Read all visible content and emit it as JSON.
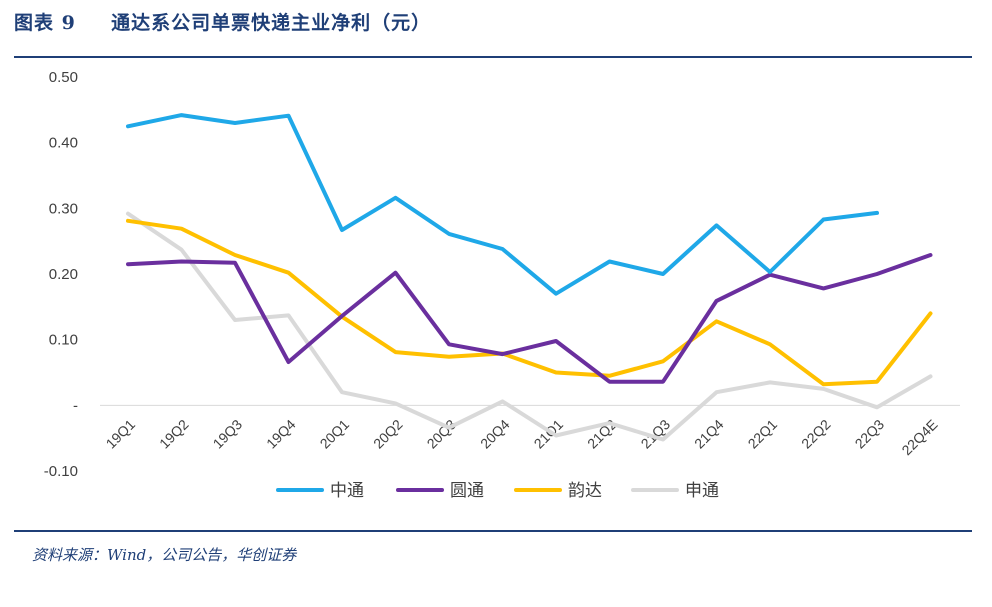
{
  "header": {
    "figure_label": "图表 9",
    "title": "通达系公司单票快递主业净利（元）"
  },
  "footer": {
    "source": "资料来源：Wind，公司公告，华创证券"
  },
  "chart_data": {
    "type": "line",
    "title": "通达系公司单票快递主业净利（元）",
    "xlabel": "",
    "ylabel": "",
    "ylim": [
      -0.1,
      0.5
    ],
    "y_ticks": [
      {
        "value": 0.5,
        "label": "0.50"
      },
      {
        "value": 0.4,
        "label": "0.40"
      },
      {
        "value": 0.3,
        "label": "0.30"
      },
      {
        "value": 0.2,
        "label": "0.20"
      },
      {
        "value": 0.1,
        "label": "0.10"
      },
      {
        "value": 0.0,
        "label": "-"
      },
      {
        "value": -0.1,
        "label": "-0.10"
      }
    ],
    "grid": false,
    "legend_position": "bottom",
    "categories": [
      "19Q1",
      "19Q2",
      "19Q3",
      "19Q4",
      "20Q1",
      "20Q2",
      "20Q3",
      "20Q4",
      "21Q1",
      "21Q2",
      "21Q3",
      "21Q4",
      "22Q1",
      "22Q2",
      "22Q3",
      "22Q4E"
    ],
    "series": [
      {
        "name": "中通",
        "color": "#1fa8e8",
        "values": [
          0.425,
          0.442,
          0.43,
          0.441,
          0.267,
          0.316,
          0.261,
          0.238,
          0.17,
          0.219,
          0.2,
          0.274,
          0.203,
          0.283,
          0.293,
          null
        ]
      },
      {
        "name": "圆通",
        "color": "#6a2f9e",
        "values": [
          0.215,
          0.219,
          0.217,
          0.066,
          0.136,
          0.202,
          0.093,
          0.078,
          0.098,
          0.036,
          0.036,
          0.159,
          0.199,
          0.178,
          0.2,
          0.229
        ]
      },
      {
        "name": "韵达",
        "color": "#ffc000",
        "values": [
          0.281,
          0.269,
          0.229,
          0.202,
          0.135,
          0.081,
          0.074,
          0.079,
          0.05,
          0.045,
          0.067,
          0.128,
          0.093,
          0.032,
          0.036,
          0.14
        ]
      },
      {
        "name": "申通",
        "color": "#d9d9d9",
        "values": [
          0.292,
          0.237,
          0.13,
          0.137,
          0.02,
          0.003,
          -0.034,
          0.006,
          -0.046,
          -0.027,
          -0.052,
          0.02,
          0.035,
          0.025,
          -0.003,
          0.044
        ]
      }
    ]
  }
}
